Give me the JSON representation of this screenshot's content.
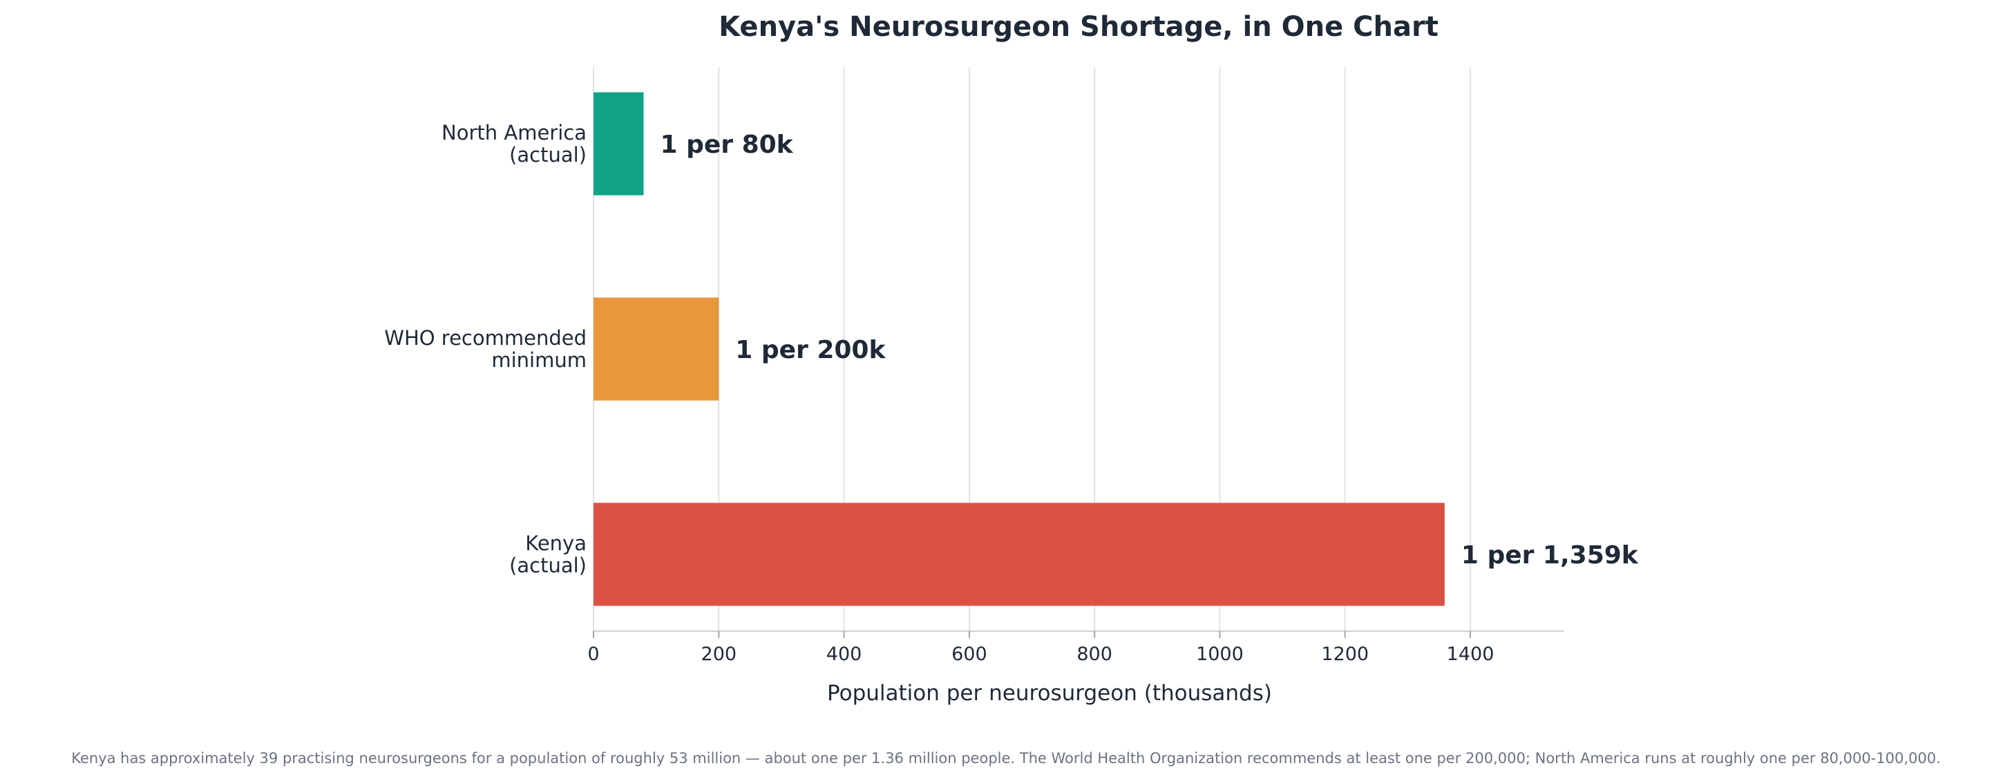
{
  "chart_data": {
    "type": "bar",
    "orientation": "horizontal",
    "title": "Kenya's Neurosurgeon Shortage, in One Chart",
    "xlabel": "Population per neurosurgeon (thousands)",
    "ylabel": "",
    "xlim": [
      0,
      1550
    ],
    "xticks": [
      0,
      200,
      400,
      600,
      800,
      1000,
      1200,
      1400
    ],
    "grid": "vertical",
    "categories": [
      [
        "North America",
        "(actual)"
      ],
      [
        "WHO recommended",
        "minimum"
      ],
      [
        "Kenya",
        "(actual)"
      ]
    ],
    "values": [
      80,
      200,
      1359
    ],
    "value_labels": [
      "1 per 80k",
      "1 per 200k",
      "1 per 1,359k"
    ],
    "colors": [
      "#10a287",
      "#e8983a",
      "#dc5145"
    ],
    "footnote": "Kenya has approximately 39 practising neurosurgeons for a population of roughly 53 million — about one per 1.36 million people. The World Health Organization recommends at least one per 200,000; North America runs at roughly one per 80,000-100,000."
  }
}
